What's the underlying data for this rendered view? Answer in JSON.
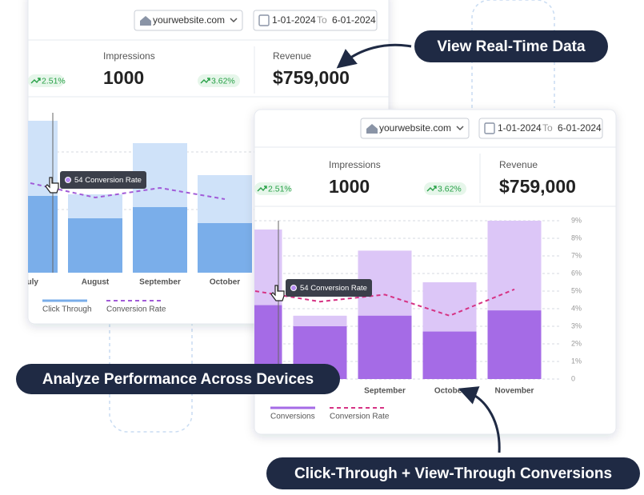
{
  "banners": [
    "View Real-Time Data",
    "Analyze Performance Across Devices",
    "Click-Through + View-Through Conversions"
  ],
  "cards": [
    {
      "header": {
        "site": "yourwebsite.com",
        "date_from": "1-01-2024",
        "to": "To",
        "date_to": "6-01-2024"
      },
      "metrics": [
        {
          "change": "2.51%"
        },
        {
          "label": "Impressions",
          "value": "1000",
          "change": "3.62%"
        },
        {
          "label": "Revenue",
          "value": "$759,000"
        }
      ],
      "tooltip": "54 Conversion Rate",
      "chart": {
        "type": "bar",
        "categories": [
          "July",
          "August",
          "September",
          "October"
        ],
        "ylim": [
          0,
          10
        ],
        "series": [
          {
            "color": "#cfe2f9",
            "values": [
              9.5,
              4.9,
              8.1,
              6.1
            ]
          },
          {
            "name": "Click Through",
            "color": "#7aaeea",
            "values": [
              4.8,
              3.4,
              4.1,
              3.1
            ]
          },
          {
            "name": "Conversion Rate",
            "type": "line",
            "color": "#a15bd8",
            "values": [
              5.6,
              4.7,
              5.3,
              4.6
            ]
          }
        ]
      }
    },
    {
      "header": {
        "site": "yourwebsite.com",
        "date_from": "1-01-2024",
        "to": "To",
        "date_to": "6-01-2024"
      },
      "metrics": [
        {
          "change": "2.51%"
        },
        {
          "label": "Impressions",
          "value": "1000",
          "change": "3.62%"
        },
        {
          "label": "Revenue",
          "value": "$759,000"
        }
      ],
      "tooltip": "54 Conversion Rate",
      "chart": {
        "type": "bar",
        "categories": [
          null,
          null,
          "September",
          "October",
          "November"
        ],
        "ylim": [
          0,
          9
        ],
        "yticks": [
          0,
          {
            "value": 1,
            "label": "1%"
          },
          {
            "value": 2,
            "label": "2%"
          },
          {
            "value": 3,
            "label": "3%"
          },
          {
            "value": 4,
            "label": "4%"
          },
          {
            "value": 5,
            "label": "5%"
          },
          {
            "value": 6,
            "label": "6%"
          },
          {
            "value": 7,
            "label": "7%"
          },
          {
            "value": 8,
            "label": "8%"
          },
          {
            "value": 9,
            "label": "9%"
          }
        ],
        "series": [
          {
            "color": "#dcc6f7",
            "values": [
              8.5,
              3.6,
              7.3,
              5.5,
              9.0
            ]
          },
          {
            "name": "Conversions",
            "color": "#a56be6",
            "values": [
              4.2,
              3.0,
              3.6,
              2.7,
              3.9
            ]
          },
          {
            "name": "Conversion Rate",
            "type": "line",
            "color": "#d63384",
            "values": [
              5.0,
              4.4,
              4.8,
              3.6,
              5.1
            ]
          }
        ]
      }
    }
  ]
}
